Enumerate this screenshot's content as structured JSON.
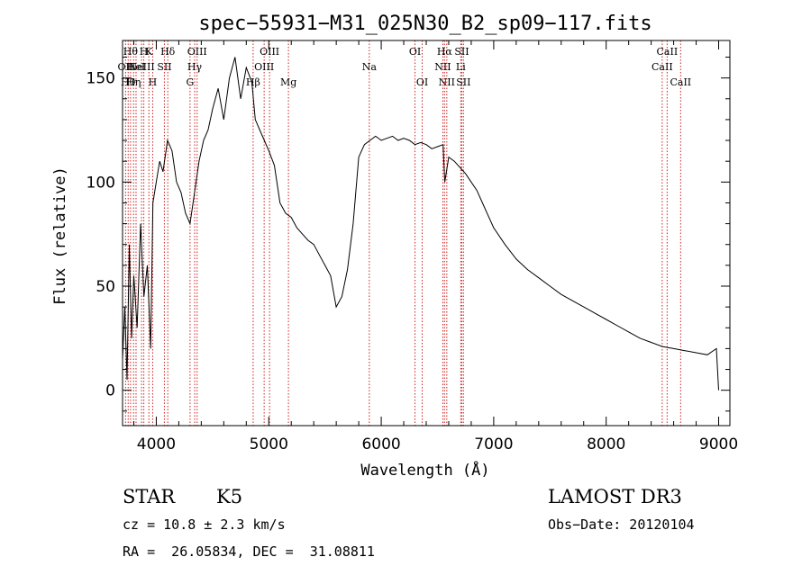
{
  "header": {
    "title": "spec−55931−M31_025N30_B2_sp09−117.fits"
  },
  "info": {
    "object_class": "STAR",
    "subclass": "K5",
    "survey": "LAMOST DR3",
    "cz": "cz = 10.8 ± 2.3 km/s",
    "obs_date": "Obs−Date: 20120104",
    "coords": "RA =  26.05834, DEC =  31.08811"
  },
  "colors": {
    "line_markers": "#cc2222",
    "spectrum": "#000000",
    "axes": "#000000"
  },
  "chart_data": {
    "type": "line",
    "title": "spec−55931−M31_025N30_B2_sp09−117.fits",
    "xlabel": "Wavelength (Å)",
    "ylabel": "Flux (relative)",
    "xlim": [
      3700,
      9100
    ],
    "ylim": [
      -17,
      168
    ],
    "xticks": [
      4000,
      5000,
      6000,
      7000,
      8000,
      9000
    ],
    "yticks": [
      0,
      50,
      100,
      150
    ],
    "ytick_labels": [
      "0",
      "50",
      "100",
      "150"
    ],
    "grid": false,
    "series": [
      {
        "name": "flux",
        "x": [
          3700,
          3720,
          3740,
          3760,
          3780,
          3800,
          3830,
          3860,
          3890,
          3920,
          3950,
          3970,
          4000,
          4030,
          4060,
          4100,
          4140,
          4180,
          4220,
          4260,
          4300,
          4340,
          4380,
          4420,
          4460,
          4500,
          4550,
          4600,
          4650,
          4700,
          4750,
          4800,
          4850,
          4880,
          4920,
          4960,
          5000,
          5050,
          5100,
          5150,
          5200,
          5250,
          5300,
          5350,
          5400,
          5450,
          5500,
          5550,
          5600,
          5650,
          5700,
          5750,
          5800,
          5850,
          5900,
          5950,
          6000,
          6050,
          6100,
          6150,
          6200,
          6250,
          6300,
          6350,
          6400,
          6450,
          6500,
          6550,
          6565,
          6600,
          6650,
          6700,
          6750,
          6800,
          6850,
          6900,
          6950,
          7000,
          7100,
          7200,
          7300,
          7400,
          7500,
          7600,
          7700,
          7800,
          7900,
          8000,
          8100,
          8200,
          8300,
          8400,
          8500,
          8600,
          8700,
          8800,
          8900,
          8980,
          9000
        ],
        "y": [
          15,
          40,
          5,
          70,
          25,
          55,
          30,
          80,
          45,
          60,
          20,
          90,
          100,
          110,
          105,
          120,
          115,
          100,
          95,
          85,
          80,
          95,
          110,
          120,
          125,
          135,
          145,
          130,
          150,
          160,
          140,
          155,
          148,
          130,
          125,
          120,
          115,
          108,
          90,
          85,
          83,
          78,
          75,
          72,
          70,
          65,
          60,
          55,
          40,
          45,
          58,
          80,
          112,
          118,
          120,
          122,
          120,
          121,
          122,
          120,
          121,
          120,
          118,
          119,
          118,
          116,
          117,
          118,
          100,
          112,
          110,
          107,
          104,
          100,
          96,
          90,
          84,
          78,
          70,
          63,
          58,
          54,
          50,
          46,
          43,
          40,
          37,
          34,
          31,
          28,
          25,
          23,
          21,
          20,
          19,
          18,
          17,
          20,
          0
        ]
      }
    ],
    "lines": [
      {
        "wavelength": 3727,
        "label": "OII",
        "row": 2
      },
      {
        "wavelength": 3750,
        "label": "H0",
        "row": 3
      },
      {
        "wavelength": 3771,
        "label": "Hθ",
        "row": 1
      },
      {
        "wavelength": 3798,
        "label": "Hη",
        "row": 3
      },
      {
        "wavelength": 3820,
        "label": "HeI",
        "row": 2
      },
      {
        "wavelength": 3869,
        "label": "NeIII",
        "row": 2
      },
      {
        "wavelength": 3889,
        "label": "H",
        "row": 1
      },
      {
        "wavelength": 3934,
        "label": "K",
        "row": 1
      },
      {
        "wavelength": 3968,
        "label": "H",
        "row": 3
      },
      {
        "wavelength": 4072,
        "label": "SII",
        "row": 2
      },
      {
        "wavelength": 4102,
        "label": "Hδ",
        "row": 1
      },
      {
        "wavelength": 4300,
        "label": "G",
        "row": 3
      },
      {
        "wavelength": 4341,
        "label": "Hγ",
        "row": 2
      },
      {
        "wavelength": 4363,
        "label": "OIII",
        "row": 1
      },
      {
        "wavelength": 4861,
        "label": "Hβ",
        "row": 3
      },
      {
        "wavelength": 4959,
        "label": "OIII",
        "row": 2
      },
      {
        "wavelength": 5007,
        "label": "OIII",
        "row": 1
      },
      {
        "wavelength": 5175,
        "label": "Mg",
        "row": 3
      },
      {
        "wavelength": 5894,
        "label": "Na",
        "row": 2
      },
      {
        "wavelength": 6300,
        "label": "OI",
        "row": 1
      },
      {
        "wavelength": 6364,
        "label": "OI",
        "row": 3
      },
      {
        "wavelength": 6548,
        "label": "NII",
        "row": 2
      },
      {
        "wavelength": 6563,
        "label": "Hα",
        "row": 1
      },
      {
        "wavelength": 6583,
        "label": "NII",
        "row": 3
      },
      {
        "wavelength": 6707,
        "label": "Li",
        "row": 2
      },
      {
        "wavelength": 6716,
        "label": "SII",
        "row": 1
      },
      {
        "wavelength": 6731,
        "label": "SII",
        "row": 3
      },
      {
        "wavelength": 8498,
        "label": "CaII",
        "row": 2
      },
      {
        "wavelength": 8542,
        "label": "CaII",
        "row": 1
      },
      {
        "wavelength": 8662,
        "label": "CaII",
        "row": 3
      }
    ]
  }
}
